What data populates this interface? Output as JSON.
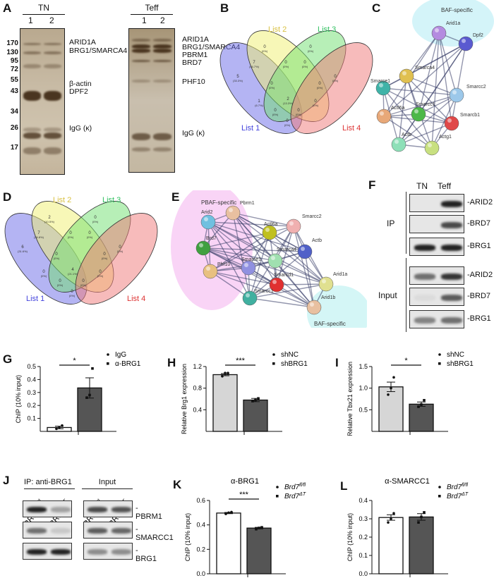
{
  "panels": {
    "A": "A",
    "B": "B",
    "C": "C",
    "D": "D",
    "E": "E",
    "F": "F",
    "G": "G",
    "H": "H",
    "I": "I",
    "J": "J",
    "K": "K",
    "L": "L"
  },
  "panel_a": {
    "gel1_title": "TN",
    "gel2_title": "Teff",
    "lanes": [
      "1",
      "2"
    ],
    "markers": [
      "170",
      "130",
      "95",
      "72",
      "55",
      "43",
      "34",
      "26",
      "17"
    ],
    "gel1_bands": [
      "ARID1A",
      "BRG1/SMARCA4",
      "β-actin",
      "DPF2",
      "IgG (κ)"
    ],
    "gel2_bands": [
      "ARID1A",
      "BRG1/SMARCA4",
      "PBRM1",
      "BRD7",
      "PHF10",
      "IgG (κ)"
    ]
  },
  "venn_b": {
    "lists": [
      "List 1",
      "List 2",
      "List 3",
      "List 4"
    ],
    "regions": [
      [
        "5",
        "(33.3%)"
      ],
      [
        "0",
        "(0%)"
      ],
      [
        "0",
        "(0%)"
      ],
      [
        "0",
        "(0%)"
      ],
      [
        "7",
        "(46.7%)"
      ],
      [
        "0",
        "(0%)"
      ],
      [
        "0",
        "(0%)"
      ],
      [
        "0",
        "(0%)"
      ],
      [
        "1",
        "(6.7%)"
      ],
      [
        "0",
        "(0%)"
      ],
      [
        "2",
        "(13.3%)"
      ],
      [
        "0",
        "(0%)"
      ],
      [
        "0",
        "(0%)"
      ],
      [
        "0",
        "(0%)"
      ],
      [
        "0",
        "(0%)"
      ]
    ]
  },
  "venn_d": {
    "lists": [
      "List 1",
      "List 2",
      "List 3",
      "List 4"
    ],
    "regions": [
      [
        "6",
        "(31.6%)"
      ],
      [
        "2",
        "(10.5%)"
      ],
      [
        "0",
        "(0%)"
      ],
      [
        "0",
        "(0%)"
      ],
      [
        "7",
        "(36.8%)"
      ],
      [
        "0",
        "(0%)"
      ],
      [
        "0",
        "(0%)"
      ],
      [
        "0",
        "(0%)"
      ],
      [
        "0",
        "(0%)"
      ],
      [
        "0",
        "(0%)"
      ],
      [
        "4",
        "(21.1%)"
      ],
      [
        "0",
        "(0%)"
      ],
      [
        "0",
        "(0%)"
      ],
      [
        "0",
        "(0%)"
      ],
      [
        "0",
        "(0%)"
      ]
    ]
  },
  "network_c": {
    "group_label": "BAF-specific",
    "nodes": [
      "Arid1a",
      "Dpf2",
      "Smarca4",
      "Smarce1",
      "Smarcc2",
      "Actl6a",
      "Smarcc1",
      "Smarcb1",
      "Actb",
      "Actg1"
    ],
    "colors": [
      "#b48be0",
      "#5a5ad0",
      "#e0c050",
      "#3fb3a8",
      "#9cc8ea",
      "#e8a878",
      "#4cb848",
      "#e04848",
      "#8ee0b8",
      "#c8e080"
    ]
  },
  "network_e": {
    "group_labels": [
      "PBAF-specific",
      "BAF-specific"
    ],
    "nodes": [
      "Pbrm1",
      "Arid2",
      "Brd7",
      "Phf10",
      "Actl6a",
      "Smarcc2",
      "Actb",
      "Smarca4",
      "Smarce1",
      "Smarcd1",
      "Smarcc1",
      "Arid1a",
      "Arid1b"
    ],
    "colors": [
      "#e8c0a0",
      "#70c0e0",
      "#40a040",
      "#e8c080",
      "#c0c020",
      "#f0b0b0",
      "#5060c8",
      "#a0e0b0",
      "#9090e0",
      "#e03030",
      "#40b0a0",
      "#e0e090",
      "#e8c0a0"
    ]
  },
  "panel_f": {
    "cols": [
      "TN",
      "Teff"
    ],
    "groups": [
      "IP",
      "Input"
    ],
    "bands": [
      "-ARID2",
      "-BRD7",
      "-BRG1",
      "-ARID2",
      "-BRD7",
      "-BRG1"
    ]
  },
  "panel_j": {
    "ip_label": "IP: anti-BRG1",
    "input_label": "Input",
    "lanes": [
      {
        "name": "BRD7",
        "sup": "fl/fl"
      },
      {
        "name": "BRD7",
        "sup": "ΔT"
      }
    ],
    "bands": [
      "-PBRM1",
      "-SMARCC1",
      "-BRG1"
    ]
  },
  "chart_data": [
    {
      "id": "G",
      "type": "bar",
      "title": "",
      "ylabel": "ChIP (10% input)",
      "ylim": [
        0,
        0.5
      ],
      "ticks": [
        "0.1",
        "0.2",
        "0.3",
        "0.4",
        "0.5"
      ],
      "legend": [
        {
          "name": "IgG",
          "sup": ""
        },
        {
          "name": "α-BRG1",
          "sup": ""
        }
      ],
      "values": [
        0.03,
        0.335
      ],
      "errors": [
        0.01,
        0.078
      ],
      "points": [
        [
          0.02,
          0.03,
          0.045
        ],
        [
          0.26,
          0.28,
          0.485
        ]
      ],
      "significance": "*",
      "colors": [
        "#ffffff",
        "#555555"
      ]
    },
    {
      "id": "H",
      "type": "bar",
      "title": "",
      "ylabel": "Relative Brg1 expression",
      "ylim": [
        0,
        1.2
      ],
      "ticks": [
        "0.4",
        "0.8",
        "1.2"
      ],
      "legend": [
        {
          "name": "shNC",
          "sup": ""
        },
        {
          "name": "shBRG1",
          "sup": ""
        }
      ],
      "values": [
        1.05,
        0.58
      ],
      "errors": [
        0.02,
        0.03
      ],
      "points": [
        [
          1.02,
          1.08,
          1.08
        ],
        [
          0.56,
          0.58,
          0.61
        ]
      ],
      "significance": "***",
      "colors": [
        "#d6d6d6",
        "#555555"
      ]
    },
    {
      "id": "I",
      "type": "bar",
      "title": "",
      "ylabel": "Relative Tbx21 expression",
      "ylim": [
        0,
        1.5
      ],
      "ticks": [
        "0.5",
        "1.0",
        "1.5"
      ],
      "legend": [
        {
          "name": "shNC",
          "sup": ""
        },
        {
          "name": "shBRG1",
          "sup": ""
        }
      ],
      "values": [
        1.03,
        0.63
      ],
      "errors": [
        0.11,
        0.05
      ],
      "points": [
        [
          0.85,
          1.0,
          1.25
        ],
        [
          0.57,
          0.62,
          0.72
        ]
      ],
      "significance": "*",
      "colors": [
        "#d6d6d6",
        "#555555"
      ]
    },
    {
      "id": "K",
      "type": "bar",
      "title": "α-BRG1",
      "ylabel": "ChIP (10% input)",
      "ylim": [
        0,
        0.6
      ],
      "ticks": [
        "0.0",
        "0.2",
        "0.4",
        "0.6"
      ],
      "legend": [
        {
          "name": "Brd7",
          "sup": "fl/fl"
        },
        {
          "name": "Brd7",
          "sup": "ΔT"
        }
      ],
      "values": [
        0.497,
        0.374
      ],
      "errors": [
        0.005,
        0.006
      ],
      "points": [
        [
          0.49,
          0.5,
          0.505
        ],
        [
          0.365,
          0.375,
          0.38
        ]
      ],
      "significance": "***",
      "colors": [
        "#ffffff",
        "#555555"
      ]
    },
    {
      "id": "L",
      "type": "bar",
      "title": "α-SMARCC1",
      "ylabel": "ChIP (10% input)",
      "ylim": [
        0,
        0.4
      ],
      "ticks": [
        "0.0",
        "0.1",
        "0.2",
        "0.3",
        "0.4"
      ],
      "legend": [
        {
          "name": "Brd7",
          "sup": "fl/fl"
        },
        {
          "name": "Brd7",
          "sup": "ΔT"
        }
      ],
      "values": [
        0.307,
        0.31
      ],
      "errors": [
        0.015,
        0.018
      ],
      "points": [
        [
          0.28,
          0.3,
          0.33
        ],
        [
          0.28,
          0.31,
          0.335
        ]
      ],
      "significance": "",
      "colors": [
        "#ffffff",
        "#555555"
      ]
    }
  ]
}
